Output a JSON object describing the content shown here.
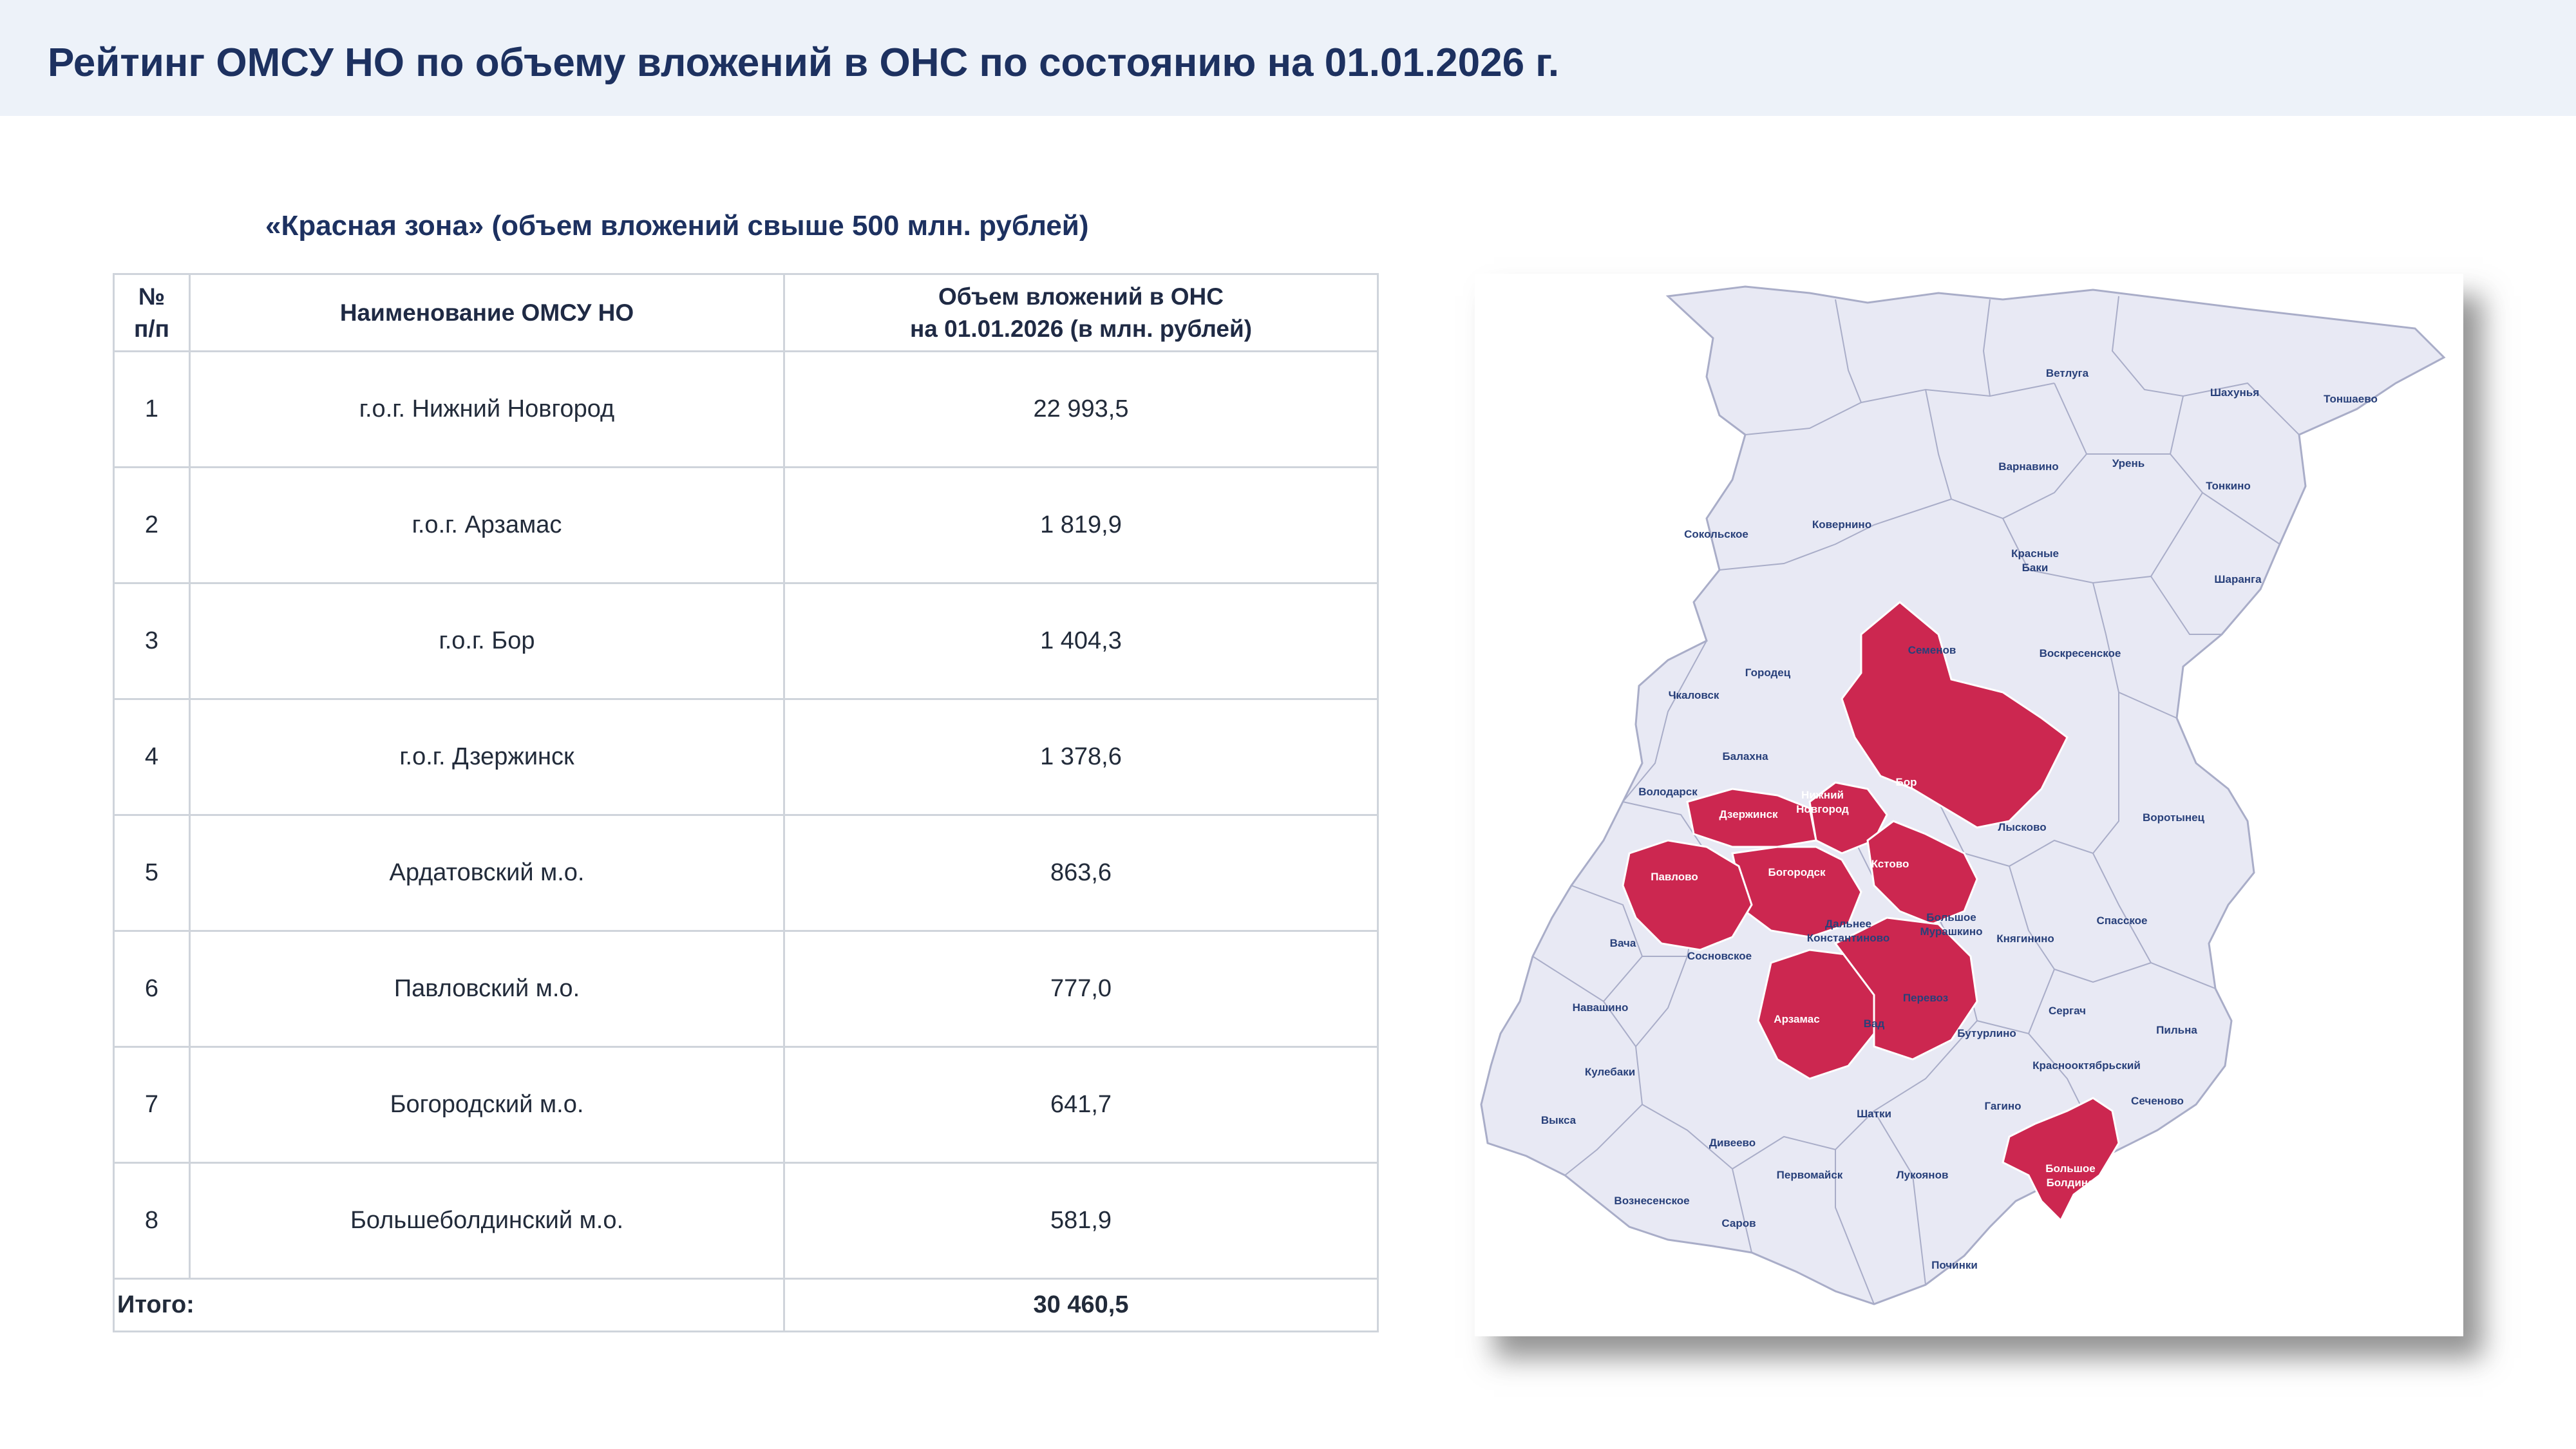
{
  "header": {
    "title": "Рейтинг ОМСУ НО по объему вложений в ОНС по состоянию на 01.01.2026 г."
  },
  "table": {
    "caption": "«Красная зона» (объем вложений свыше 500 млн. рублей)",
    "columns": {
      "num_line1": "№",
      "num_line2": "п/п",
      "name": "Наименование ОМСУ НО",
      "value_line1": "Объем вложений в ОНС",
      "value_line2": "на 01.01.2026 (в млн. рублей)"
    },
    "rows": [
      {
        "num": "1",
        "name": "г.о.г. Нижний Новгород",
        "value": "22 993,5"
      },
      {
        "num": "2",
        "name": "г.о.г. Арзамас",
        "value": "1 819,9"
      },
      {
        "num": "3",
        "name": "г.о.г. Бор",
        "value": "1 404,3"
      },
      {
        "num": "4",
        "name": "г.о.г. Дзержинск",
        "value": "1 378,6"
      },
      {
        "num": "5",
        "name": "Ардатовский м.о.",
        "value": "863,6"
      },
      {
        "num": "6",
        "name": "Павловский м.о.",
        "value": "777,0"
      },
      {
        "num": "7",
        "name": "Богородский м.о.",
        "value": "641,7"
      },
      {
        "num": "8",
        "name": "Большеболдинский м.о.",
        "value": "581,9"
      }
    ],
    "total_label": "Итого:",
    "total_value": "30 460,5"
  },
  "map": {
    "region_fill": "#e8e9f4",
    "highlight_fill": "#cc2750",
    "border_color": "#a9adc8",
    "labels": {
      "vetluga": "Ветлуга",
      "shakhunya": "Шахунья",
      "tonshaevo": "Тоншаево",
      "varnavino": "Варнавино",
      "uren": "Урень",
      "tonkino": "Тонкино",
      "sokolskoe": "Сокольское",
      "kovernino": "Ковернино",
      "krasnye_baki_1": "Красные",
      "krasnye_baki_2": "Баки",
      "sharanga": "Шаранга",
      "gorodets": "Городец",
      "semenov": "Семенов",
      "voskresenskoe": "Воскресенское",
      "chkalovsk": "Чкаловск",
      "balakhna": "Балахна",
      "bor": "Бор",
      "volodarsk": "Володарск",
      "dzerzhinsk": "Дзержинск",
      "nizhny_1": "Нижний",
      "nizhny_2": "Новгород",
      "lyskovo": "Лысково",
      "vorotynets": "Воротынец",
      "bogorodsk": "Богородск",
      "kstovo": "Кстово",
      "kstovo_district": "Кстово",
      "dalnee_1": "Дальнее",
      "dalnee_2": "Константиново",
      "bolshoe_mur_1": "Большое",
      "bolshoe_mur_2": "Мурашкино",
      "knyaginino": "Княгинино",
      "spasskoe": "Спасское",
      "vacha": "Вача",
      "sosnovskoe": "Сосновское",
      "navashino": "Навашино",
      "arzamas_district": "Арзамас",
      "perevoz": "Перевоз",
      "sergach": "Сергач",
      "pilna": "Пильна",
      "vad": "Вад",
      "buturlino": "Бутурлино",
      "kulebaki": "Кулебаки",
      "krasnooktyabrsky": "Краснооктябрьский",
      "pavlovo": "Павлово",
      "vyksa": "Выкса",
      "shatki": "Шатки",
      "gagino": "Гагино",
      "sechenovo": "Сеченово",
      "diveevo": "Дивеево",
      "pervomaysk": "Первомайск",
      "lukoyanov": "Лукоянов",
      "bolshoe_boldino_1": "Большое",
      "bolshoe_boldino_2": "Болдино",
      "voznesenskoe": "Вознесенское",
      "sarov": "Саров",
      "pochinki": "Починки"
    }
  }
}
